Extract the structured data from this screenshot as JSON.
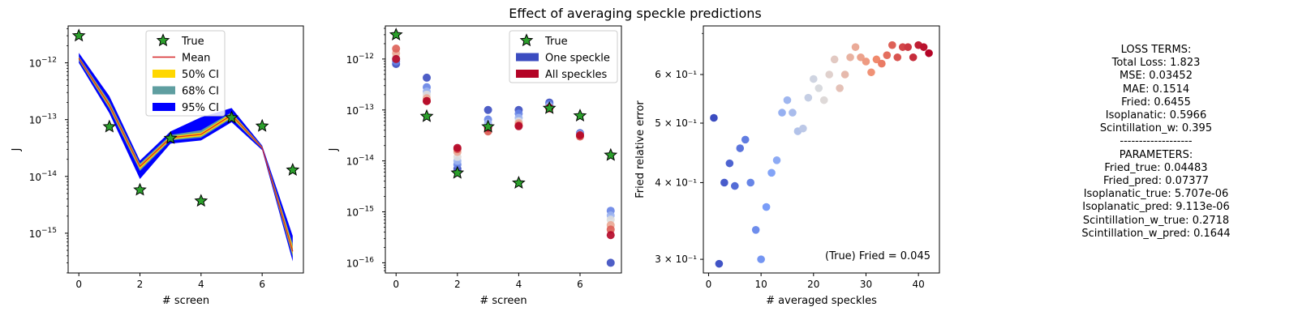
{
  "suptitle": "Effect of averaging speckle predictions",
  "chart_data": [
    {
      "type": "area",
      "xlabel": "# screen",
      "ylabel": "J",
      "xlim": [
        -0.35,
        7.35
      ],
      "ylim_log10": [
        -15.7,
        -11.35
      ],
      "yscale": "log",
      "xticks": [
        0,
        2,
        4,
        6
      ],
      "yticks_exp": [
        -12,
        -13,
        -14,
        -15
      ],
      "legend_location": "upper center",
      "legend": [
        {
          "label": "True",
          "kind": "star",
          "color": "#2ca02c"
        },
        {
          "label": "Mean",
          "kind": "line",
          "color": "#d62728"
        },
        {
          "label": "50% CI",
          "kind": "patch",
          "color": "#ffd700"
        },
        {
          "label": "68% CI",
          "kind": "patch",
          "color": "#5f9ea0"
        },
        {
          "label": "95% CI",
          "kind": "patch",
          "color": "#0000ff"
        }
      ],
      "x": [
        0,
        1,
        2,
        3,
        4,
        5,
        6,
        7
      ],
      "true_values": [
        3e-12,
        7.5e-14,
        5.8e-15,
        4.7e-14,
        3.7e-15,
        1.08e-13,
        7.7e-14,
        1.3e-14
      ],
      "mean": [
        1.2e-12,
        1.8e-13,
        1.5e-14,
        4.8e-14,
        5.5e-14,
        1.2e-13,
        3.2e-14,
        4.8e-16
      ],
      "ci95": {
        "low": [
          1e-12,
          1.3e-13,
          9e-15,
          3.8e-14,
          4.3e-14,
          9e-14,
          2.9e-14,
          3.2e-16
        ],
        "high": [
          1.5e-12,
          2.6e-13,
          1.9e-14,
          6.2e-14,
          1.1e-13,
          1.6e-13,
          3.5e-14,
          9e-16
        ]
      },
      "ci68": {
        "low": [
          1.1e-12,
          1.55e-13,
          1.25e-14,
          4.3e-14,
          4.8e-14,
          1.05e-13,
          3.05e-14,
          3.8e-16
        ],
        "high": [
          1.3e-12,
          2.1e-13,
          1.7e-14,
          5.4e-14,
          6.5e-14,
          1.35e-13,
          3.35e-14,
          6.5e-16
        ]
      },
      "ci50": {
        "low": [
          1.15e-12,
          1.65e-13,
          1.35e-14,
          4.5e-14,
          5.1e-14,
          1.1e-13,
          3.1e-14,
          4.2e-16
        ],
        "high": [
          1.25e-12,
          1.95e-13,
          1.6e-14,
          5.1e-14,
          5.9e-14,
          1.3e-13,
          3.3e-14,
          5.8e-16
        ]
      }
    },
    {
      "type": "scatter",
      "xlabel": "# screen",
      "ylabel": "J",
      "xlim": [
        -0.35,
        7.35
      ],
      "ylim_log10": [
        -16.2,
        -11.35
      ],
      "yscale": "log",
      "xticks": [
        0,
        2,
        4,
        6
      ],
      "yticks_exp": [
        -12,
        -13,
        -14,
        -15,
        -16
      ],
      "legend_location": "upper right",
      "legend": [
        {
          "label": "True",
          "kind": "star",
          "color": "#2ca02c"
        },
        {
          "label": "One speckle",
          "kind": "patch",
          "color": "#3b4cc0"
        },
        {
          "label": "All speckles",
          "kind": "patch",
          "color": "#b40426"
        }
      ],
      "x": [
        0,
        1,
        2,
        3,
        4,
        5,
        6,
        7
      ],
      "true_values": [
        3e-12,
        7.5e-14,
        5.8e-15,
        4.7e-14,
        3.7e-15,
        1.08e-13,
        7.7e-14,
        1.3e-14
      ],
      "speckle_predictions": [
        [
          8e-13,
          9e-13,
          1e-12,
          1.1e-12,
          1.3e-12,
          1.6e-12,
          1e-12
        ],
        [
          4.3e-13,
          2.8e-13,
          2.3e-13,
          2e-13,
          1.7e-13,
          1.5e-13,
          1.5e-13
        ],
        [
          7e-15,
          8.5e-15,
          1e-14,
          1.2e-14,
          1.5e-14,
          1.7e-14,
          1.8e-14
        ],
        [
          1e-13,
          6.5e-14,
          5.5e-14,
          4.5e-14,
          4e-14,
          3.8e-14,
          4.5e-14
        ],
        [
          1e-13,
          8.5e-14,
          7e-14,
          6e-14,
          5.5e-14,
          5e-14,
          4.8e-14
        ],
        [
          1.4e-13,
          1.3e-13,
          1.2e-13,
          1.1e-13,
          1.05e-13,
          1.1e-13,
          1.1e-13
        ],
        [
          3.5e-14,
          3.4e-14,
          3.3e-14,
          3.2e-14,
          3.1e-14,
          3e-14,
          3.2e-14
        ],
        [
          1e-16,
          1.05e-15,
          8.5e-16,
          7e-16,
          5.5e-16,
          4.5e-16,
          3.5e-16
        ]
      ]
    },
    {
      "type": "scatter",
      "xlabel": "# averaged speckles",
      "ylabel": "Fried relative error",
      "xlim": [
        -1,
        44
      ],
      "ylim": [
        0.285,
        0.72
      ],
      "yscale": "log",
      "xticks": [
        0,
        10,
        20,
        30,
        40
      ],
      "yticks": [
        {
          "value": 0.3,
          "label": "3 × 10⁻¹"
        },
        {
          "value": 0.4,
          "label": "4 × 10⁻¹"
        },
        {
          "value": 0.5,
          "label": "5 × 10⁻¹"
        },
        {
          "value": 0.6,
          "label": "6 × 10⁻¹"
        }
      ],
      "annotation": "(True) Fried = 0.045",
      "colormap": "coolwarm",
      "x": [
        1,
        2,
        3,
        4,
        5,
        6,
        7,
        8,
        9,
        10,
        11,
        12,
        13,
        14,
        15,
        16,
        17,
        18,
        19,
        20,
        21,
        22,
        23,
        24,
        25,
        26,
        27,
        28,
        29,
        30,
        31,
        32,
        33,
        34,
        35,
        36,
        37,
        38,
        39,
        40,
        41,
        42
      ],
      "y": [
        0.51,
        0.295,
        0.4,
        0.43,
        0.395,
        0.455,
        0.47,
        0.4,
        0.335,
        0.3,
        0.365,
        0.415,
        0.435,
        0.52,
        0.545,
        0.52,
        0.485,
        0.49,
        0.55,
        0.59,
        0.57,
        0.545,
        0.6,
        0.635,
        0.57,
        0.6,
        0.64,
        0.665,
        0.64,
        0.63,
        0.605,
        0.635,
        0.625,
        0.645,
        0.67,
        0.64,
        0.665,
        0.665,
        0.64,
        0.67,
        0.665,
        0.65
      ]
    }
  ],
  "loss_panel": {
    "lines": [
      "LOSS TERMS:",
      "Total Loss: 1.823",
      "MSE: 0.03452",
      "MAE: 0.1514",
      "Fried: 0.6455",
      "Isoplanatic: 0.5966",
      "Scintillation_w: 0.395",
      "-------------------",
      "PARAMETERS:",
      "Fried_true: 0.04483",
      "Fried_pred: 0.07377",
      "Isoplanatic_true: 5.707e-06",
      "Isoplanatic_pred: 9.113e-06",
      "Scintillation_w_true: 0.2718",
      "Scintillation_w_pred: 0.1644"
    ]
  }
}
